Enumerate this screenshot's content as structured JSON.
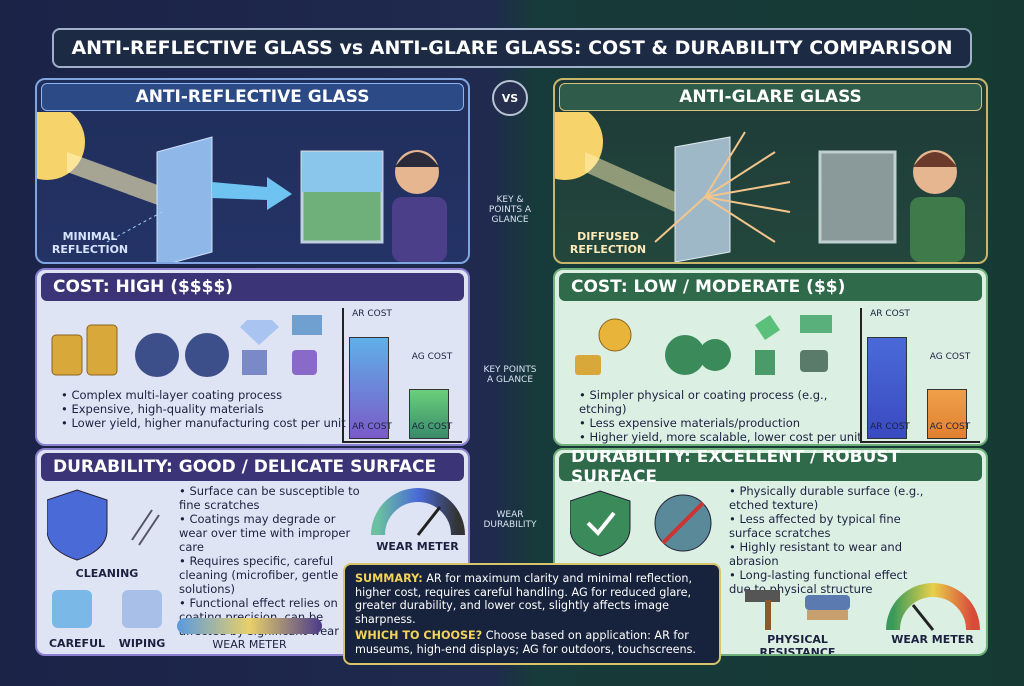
{
  "header": {
    "title": "ANTI-REFLECTIVE GLASS vs ANTI-GLARE GLASS: COST & DURABILITY COMPARISON",
    "vs": "VS"
  },
  "left": {
    "title": "ANTI-REFLECTIVE GLASS",
    "illustration_label": "MINIMAL REFLECTION",
    "cost": {
      "heading": "COST: HIGH ($$$$)",
      "bullets": [
        "Complex multi-layer coating process",
        "Expensive, high-quality materials",
        "Lower yield, higher manufacturing cost per unit"
      ],
      "bar_labels_top": [
        "AR COST",
        "AG COST"
      ],
      "bar_labels_bottom": [
        "AR COST",
        "AG COST"
      ]
    },
    "durability": {
      "heading": "DURABILITY: GOOD / DELICATE SURFACE",
      "bullets": [
        "Surface can be susceptible to fine scratches",
        "Coatings may degrade or wear over time with improper care",
        "Requires specific, careful cleaning (microfiber, gentle solutions)",
        "Functional effect relies on coating precision, can be affected by significant wear"
      ],
      "meter_label": "WEAR METER",
      "cleaning_label": "CLEANING",
      "careful_label": "CAREFUL",
      "wiping_label": "WIPING",
      "bar_meter_label": "WEAR METER"
    }
  },
  "middle": {
    "labels": [
      "KEY & POINTS A GLANCE",
      "KEY POINTS A GLANCE",
      "WEAR DURABILITY"
    ]
  },
  "right": {
    "title": "ANTI-GLARE GLASS",
    "illustration_label": "DIFFUSED REFLECTION",
    "cost": {
      "heading": "COST: LOW / MODERATE ($$)",
      "bullets": [
        "Simpler physical or coating process (e.g., etching)",
        "Less expensive materials/production",
        "Higher yield, more scalable, lower cost per unit"
      ],
      "bar_labels_top": [
        "AR COST",
        "AG COST"
      ],
      "bar_labels_bottom": [
        "AR COST",
        "AG COST"
      ]
    },
    "durability": {
      "heading": "DURABILITY: EXCELLENT / ROBUST SURFACE",
      "bullets": [
        "Physically durable surface (e.g., etched texture)",
        "Less affected by typical fine surface scratches",
        "Highly resistant to wear and abrasion",
        "Long-lasting functional effect due to physical structure"
      ],
      "resistance_label": "PHYSICAL RESISTANCE",
      "meter_label": "WEAR METER"
    }
  },
  "summary": {
    "summary_label": "SUMMARY:",
    "summary_text": "AR for maximum clarity and minimal reflection, higher cost, requires careful handling. AG for reduced glare, greater durability, and lower cost, slightly affects image sharpness.",
    "choose_label": "WHICH TO CHOOSE?",
    "choose_text": "Choose based on application: AR for museums, high-end displays; AG for outdoors, touchscreens."
  }
}
